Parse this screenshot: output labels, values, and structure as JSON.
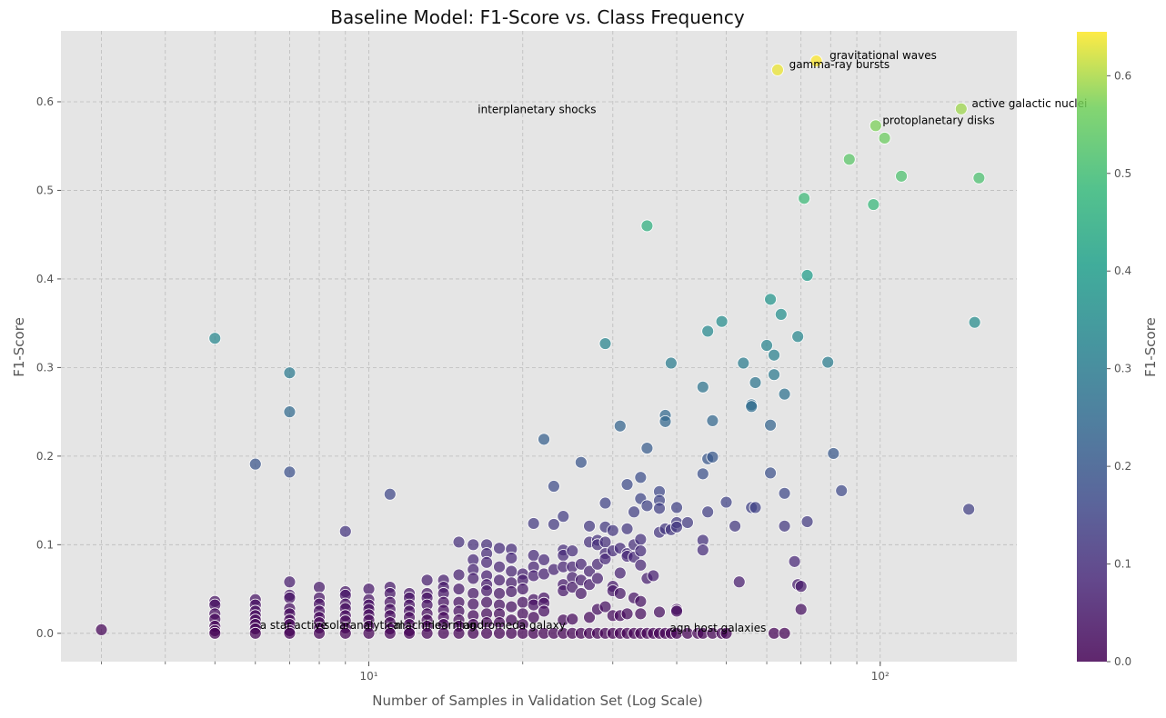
{
  "chart_data": {
    "type": "scatter",
    "title": "Baseline Model: F1-Score vs. Class Frequency",
    "xlabel": "Number of Samples in Validation Set (Log Scale)",
    "ylabel": "F1-Score",
    "xscale": "log",
    "xlim": [
      2.5,
      185
    ],
    "ylim": [
      -0.032,
      0.68
    ],
    "grid": true,
    "xticks": [
      {
        "value": 10,
        "label": "10¹"
      },
      {
        "value": 100,
        "label": "10²"
      }
    ],
    "yticks": [
      {
        "value": 0.0,
        "label": "0.0"
      },
      {
        "value": 0.1,
        "label": "0.1"
      },
      {
        "value": 0.2,
        "label": "0.2"
      },
      {
        "value": 0.3,
        "label": "0.3"
      },
      {
        "value": 0.4,
        "label": "0.4"
      },
      {
        "value": 0.5,
        "label": "0.5"
      },
      {
        "value": 0.6,
        "label": "0.6"
      }
    ],
    "colorbar": {
      "label": "F1-Score",
      "colormap": "viridis",
      "range": [
        0.0,
        0.645
      ],
      "ticks": [
        {
          "value": 0.0,
          "label": "0.0"
        },
        {
          "value": 0.1,
          "label": "0.1"
        },
        {
          "value": 0.2,
          "label": "0.2"
        },
        {
          "value": 0.3,
          "label": "0.3"
        },
        {
          "value": 0.4,
          "label": "0.4"
        },
        {
          "value": 0.5,
          "label": "0.5"
        },
        {
          "value": 0.6,
          "label": "0.6"
        }
      ]
    },
    "annotations": [
      {
        "text": "gravitational waves",
        "x": 78,
        "y": 0.646
      },
      {
        "text": "gamma-ray bursts",
        "x": 65,
        "y": 0.636
      },
      {
        "text": "active galactic nuclei",
        "x": 148,
        "y": 0.592
      },
      {
        "text": "protoplanetary disks",
        "x": 99,
        "y": 0.573
      },
      {
        "text": "interplanetary shocks",
        "x": 16,
        "y": 0.585
      },
      {
        "text": "a star",
        "x": 6,
        "y": 0.003
      },
      {
        "text": "active",
        "x": 7,
        "y": 0.003
      },
      {
        "text": "solar",
        "x": 8,
        "y": 0.003
      },
      {
        "text": "analytical",
        "x": 9,
        "y": 0.003
      },
      {
        "text": "machine",
        "x": 11,
        "y": 0.003
      },
      {
        "text": "learning",
        "x": 13,
        "y": 0.003
      },
      {
        "text": "andromeda galaxy",
        "x": 15,
        "y": 0.003
      },
      {
        "text": "agn host galaxies",
        "x": 38,
        "y": 0.0
      }
    ],
    "points": [
      {
        "x": 3,
        "y": 0.004
      },
      {
        "x": 5,
        "y": 0.333
      },
      {
        "x": 5,
        "y": 0.036
      },
      {
        "x": 5,
        "y": 0.032
      },
      {
        "x": 5,
        "y": 0.022
      },
      {
        "x": 5,
        "y": 0.016
      },
      {
        "x": 5,
        "y": 0.008
      },
      {
        "x": 5,
        "y": 0.003
      },
      {
        "x": 5,
        "y": 0.0
      },
      {
        "x": 6,
        "y": 0.191
      },
      {
        "x": 6,
        "y": 0.038
      },
      {
        "x": 6,
        "y": 0.032
      },
      {
        "x": 6,
        "y": 0.025
      },
      {
        "x": 6,
        "y": 0.02
      },
      {
        "x": 6,
        "y": 0.015
      },
      {
        "x": 6,
        "y": 0.01
      },
      {
        "x": 6,
        "y": 0.005
      },
      {
        "x": 6,
        "y": 0.0
      },
      {
        "x": 7,
        "y": 0.294
      },
      {
        "x": 7,
        "y": 0.25
      },
      {
        "x": 7,
        "y": 0.182
      },
      {
        "x": 7,
        "y": 0.058
      },
      {
        "x": 7,
        "y": 0.043
      },
      {
        "x": 7,
        "y": 0.04
      },
      {
        "x": 7,
        "y": 0.028
      },
      {
        "x": 7,
        "y": 0.022
      },
      {
        "x": 7,
        "y": 0.015
      },
      {
        "x": 7,
        "y": 0.01
      },
      {
        "x": 7,
        "y": 0.003
      },
      {
        "x": 7,
        "y": 0.0
      },
      {
        "x": 8,
        "y": 0.052
      },
      {
        "x": 8,
        "y": 0.04
      },
      {
        "x": 8,
        "y": 0.033
      },
      {
        "x": 8,
        "y": 0.025
      },
      {
        "x": 8,
        "y": 0.018
      },
      {
        "x": 8,
        "y": 0.012
      },
      {
        "x": 8,
        "y": 0.006
      },
      {
        "x": 8,
        "y": 0.0
      },
      {
        "x": 9,
        "y": 0.115
      },
      {
        "x": 9,
        "y": 0.047
      },
      {
        "x": 9,
        "y": 0.043
      },
      {
        "x": 9,
        "y": 0.033
      },
      {
        "x": 9,
        "y": 0.028
      },
      {
        "x": 9,
        "y": 0.02
      },
      {
        "x": 9,
        "y": 0.014
      },
      {
        "x": 9,
        "y": 0.006
      },
      {
        "x": 9,
        "y": 0.0
      },
      {
        "x": 10,
        "y": 0.05
      },
      {
        "x": 10,
        "y": 0.038
      },
      {
        "x": 10,
        "y": 0.032
      },
      {
        "x": 10,
        "y": 0.027
      },
      {
        "x": 10,
        "y": 0.021
      },
      {
        "x": 10,
        "y": 0.015
      },
      {
        "x": 10,
        "y": 0.008
      },
      {
        "x": 10,
        "y": 0.0
      },
      {
        "x": 11,
        "y": 0.157
      },
      {
        "x": 11,
        "y": 0.052
      },
      {
        "x": 11,
        "y": 0.045
      },
      {
        "x": 11,
        "y": 0.035
      },
      {
        "x": 11,
        "y": 0.027
      },
      {
        "x": 11,
        "y": 0.02
      },
      {
        "x": 11,
        "y": 0.012
      },
      {
        "x": 11,
        "y": 0.005
      },
      {
        "x": 11,
        "y": 0.0
      },
      {
        "x": 12,
        "y": 0.045
      },
      {
        "x": 12,
        "y": 0.04
      },
      {
        "x": 12,
        "y": 0.032
      },
      {
        "x": 12,
        "y": 0.025
      },
      {
        "x": 12,
        "y": 0.018
      },
      {
        "x": 12,
        "y": 0.01
      },
      {
        "x": 12,
        "y": 0.003
      },
      {
        "x": 12,
        "y": 0.0
      },
      {
        "x": 13,
        "y": 0.06
      },
      {
        "x": 13,
        "y": 0.045
      },
      {
        "x": 13,
        "y": 0.04
      },
      {
        "x": 13,
        "y": 0.032
      },
      {
        "x": 13,
        "y": 0.022
      },
      {
        "x": 13,
        "y": 0.015
      },
      {
        "x": 13,
        "y": 0.008
      },
      {
        "x": 13,
        "y": 0.0
      },
      {
        "x": 14,
        "y": 0.06
      },
      {
        "x": 14,
        "y": 0.052
      },
      {
        "x": 14,
        "y": 0.045
      },
      {
        "x": 14,
        "y": 0.035
      },
      {
        "x": 14,
        "y": 0.026
      },
      {
        "x": 14,
        "y": 0.018
      },
      {
        "x": 14,
        "y": 0.01
      },
      {
        "x": 14,
        "y": 0.0
      },
      {
        "x": 15,
        "y": 0.103
      },
      {
        "x": 15,
        "y": 0.066
      },
      {
        "x": 15,
        "y": 0.05
      },
      {
        "x": 15,
        "y": 0.035
      },
      {
        "x": 15,
        "y": 0.025
      },
      {
        "x": 15,
        "y": 0.015
      },
      {
        "x": 15,
        "y": 0.008
      },
      {
        "x": 15,
        "y": 0.0
      },
      {
        "x": 16,
        "y": 0.1
      },
      {
        "x": 16,
        "y": 0.083
      },
      {
        "x": 16,
        "y": 0.072
      },
      {
        "x": 16,
        "y": 0.062
      },
      {
        "x": 16,
        "y": 0.045
      },
      {
        "x": 16,
        "y": 0.033
      },
      {
        "x": 16,
        "y": 0.02
      },
      {
        "x": 16,
        "y": 0.01
      },
      {
        "x": 16,
        "y": 0.0
      },
      {
        "x": 17,
        "y": 0.1
      },
      {
        "x": 17,
        "y": 0.09
      },
      {
        "x": 17,
        "y": 0.08
      },
      {
        "x": 17,
        "y": 0.065
      },
      {
        "x": 17,
        "y": 0.055
      },
      {
        "x": 17,
        "y": 0.048
      },
      {
        "x": 17,
        "y": 0.035
      },
      {
        "x": 17,
        "y": 0.022
      },
      {
        "x": 17,
        "y": 0.012
      },
      {
        "x": 17,
        "y": 0.0
      },
      {
        "x": 18,
        "y": 0.096
      },
      {
        "x": 18,
        "y": 0.075
      },
      {
        "x": 18,
        "y": 0.06
      },
      {
        "x": 18,
        "y": 0.045
      },
      {
        "x": 18,
        "y": 0.032
      },
      {
        "x": 18,
        "y": 0.022
      },
      {
        "x": 18,
        "y": 0.012
      },
      {
        "x": 18,
        "y": 0.0
      },
      {
        "x": 19,
        "y": 0.095
      },
      {
        "x": 19,
        "y": 0.085
      },
      {
        "x": 19,
        "y": 0.07
      },
      {
        "x": 19,
        "y": 0.057
      },
      {
        "x": 19,
        "y": 0.047
      },
      {
        "x": 19,
        "y": 0.03
      },
      {
        "x": 19,
        "y": 0.015
      },
      {
        "x": 19,
        "y": 0.0
      },
      {
        "x": 20,
        "y": 0.067
      },
      {
        "x": 20,
        "y": 0.06
      },
      {
        "x": 20,
        "y": 0.05
      },
      {
        "x": 20,
        "y": 0.035
      },
      {
        "x": 20,
        "y": 0.022
      },
      {
        "x": 20,
        "y": 0.01
      },
      {
        "x": 20,
        "y": 0.0
      },
      {
        "x": 21,
        "y": 0.124
      },
      {
        "x": 21,
        "y": 0.088
      },
      {
        "x": 21,
        "y": 0.075
      },
      {
        "x": 21,
        "y": 0.065
      },
      {
        "x": 21,
        "y": 0.038
      },
      {
        "x": 21,
        "y": 0.032
      },
      {
        "x": 21,
        "y": 0.018
      },
      {
        "x": 21,
        "y": 0.0
      },
      {
        "x": 22,
        "y": 0.219
      },
      {
        "x": 22,
        "y": 0.083
      },
      {
        "x": 22,
        "y": 0.067
      },
      {
        "x": 22,
        "y": 0.04
      },
      {
        "x": 22,
        "y": 0.034
      },
      {
        "x": 22,
        "y": 0.025
      },
      {
        "x": 22,
        "y": 0.0
      },
      {
        "x": 23,
        "y": 0.166
      },
      {
        "x": 23,
        "y": 0.123
      },
      {
        "x": 23,
        "y": 0.072
      },
      {
        "x": 23,
        "y": 0.0
      },
      {
        "x": 24,
        "y": 0.132
      },
      {
        "x": 24,
        "y": 0.094
      },
      {
        "x": 24,
        "y": 0.088
      },
      {
        "x": 24,
        "y": 0.075
      },
      {
        "x": 24,
        "y": 0.055
      },
      {
        "x": 24,
        "y": 0.048
      },
      {
        "x": 24,
        "y": 0.015
      },
      {
        "x": 24,
        "y": 0.0
      },
      {
        "x": 25,
        "y": 0.093
      },
      {
        "x": 25,
        "y": 0.075
      },
      {
        "x": 25,
        "y": 0.063
      },
      {
        "x": 25,
        "y": 0.052
      },
      {
        "x": 25,
        "y": 0.016
      },
      {
        "x": 25,
        "y": 0.0
      },
      {
        "x": 26,
        "y": 0.193
      },
      {
        "x": 26,
        "y": 0.078
      },
      {
        "x": 26,
        "y": 0.06
      },
      {
        "x": 26,
        "y": 0.045
      },
      {
        "x": 26,
        "y": 0.0
      },
      {
        "x": 27,
        "y": 0.121
      },
      {
        "x": 27,
        "y": 0.103
      },
      {
        "x": 27,
        "y": 0.07
      },
      {
        "x": 27,
        "y": 0.055
      },
      {
        "x": 27,
        "y": 0.018
      },
      {
        "x": 27,
        "y": 0.0
      },
      {
        "x": 28,
        "y": 0.105
      },
      {
        "x": 28,
        "y": 0.1
      },
      {
        "x": 28,
        "y": 0.078
      },
      {
        "x": 28,
        "y": 0.062
      },
      {
        "x": 28,
        "y": 0.027
      },
      {
        "x": 28,
        "y": 0.0
      },
      {
        "x": 29,
        "y": 0.327
      },
      {
        "x": 29,
        "y": 0.147
      },
      {
        "x": 29,
        "y": 0.12
      },
      {
        "x": 29,
        "y": 0.103
      },
      {
        "x": 29,
        "y": 0.09
      },
      {
        "x": 29,
        "y": 0.084
      },
      {
        "x": 29,
        "y": 0.03
      },
      {
        "x": 29,
        "y": 0.0
      },
      {
        "x": 30,
        "y": 0.116
      },
      {
        "x": 30,
        "y": 0.093
      },
      {
        "x": 30,
        "y": 0.053
      },
      {
        "x": 30,
        "y": 0.048
      },
      {
        "x": 30,
        "y": 0.02
      },
      {
        "x": 30,
        "y": 0.0
      },
      {
        "x": 31,
        "y": 0.234
      },
      {
        "x": 31,
        "y": 0.096
      },
      {
        "x": 31,
        "y": 0.068
      },
      {
        "x": 31,
        "y": 0.045
      },
      {
        "x": 31,
        "y": 0.02
      },
      {
        "x": 31,
        "y": 0.0
      },
      {
        "x": 32,
        "y": 0.168
      },
      {
        "x": 32,
        "y": 0.118
      },
      {
        "x": 32,
        "y": 0.09
      },
      {
        "x": 32,
        "y": 0.087
      },
      {
        "x": 32,
        "y": 0.022
      },
      {
        "x": 32,
        "y": 0.0
      },
      {
        "x": 33,
        "y": 0.137
      },
      {
        "x": 33,
        "y": 0.1
      },
      {
        "x": 33,
        "y": 0.086
      },
      {
        "x": 33,
        "y": 0.04
      },
      {
        "x": 33,
        "y": 0.0
      },
      {
        "x": 34,
        "y": 0.176
      },
      {
        "x": 34,
        "y": 0.152
      },
      {
        "x": 34,
        "y": 0.106
      },
      {
        "x": 34,
        "y": 0.093
      },
      {
        "x": 34,
        "y": 0.077
      },
      {
        "x": 34,
        "y": 0.036
      },
      {
        "x": 34,
        "y": 0.022
      },
      {
        "x": 34,
        "y": 0.0
      },
      {
        "x": 35,
        "y": 0.46
      },
      {
        "x": 35,
        "y": 0.209
      },
      {
        "x": 35,
        "y": 0.144
      },
      {
        "x": 35,
        "y": 0.062
      },
      {
        "x": 35,
        "y": 0.0
      },
      {
        "x": 36,
        "y": 0.065
      },
      {
        "x": 36,
        "y": 0.0
      },
      {
        "x": 37,
        "y": 0.16
      },
      {
        "x": 37,
        "y": 0.15
      },
      {
        "x": 37,
        "y": 0.141
      },
      {
        "x": 37,
        "y": 0.114
      },
      {
        "x": 37,
        "y": 0.024
      },
      {
        "x": 37,
        "y": 0.0
      },
      {
        "x": 38,
        "y": 0.246
      },
      {
        "x": 38,
        "y": 0.239
      },
      {
        "x": 38,
        "y": 0.118
      },
      {
        "x": 38,
        "y": 0.0
      },
      {
        "x": 39,
        "y": 0.305
      },
      {
        "x": 39,
        "y": 0.117
      },
      {
        "x": 39,
        "y": 0.0
      },
      {
        "x": 40,
        "y": 0.142
      },
      {
        "x": 40,
        "y": 0.125
      },
      {
        "x": 40,
        "y": 0.12
      },
      {
        "x": 40,
        "y": 0.027
      },
      {
        "x": 40,
        "y": 0.025
      },
      {
        "x": 40,
        "y": 0.0
      },
      {
        "x": 42,
        "y": 0.125
      },
      {
        "x": 42,
        "y": 0.0
      },
      {
        "x": 44,
        "y": 0.0
      },
      {
        "x": 45,
        "y": 0.278
      },
      {
        "x": 45,
        "y": 0.18
      },
      {
        "x": 45,
        "y": 0.105
      },
      {
        "x": 45,
        "y": 0.094
      },
      {
        "x": 45,
        "y": 0.0
      },
      {
        "x": 46,
        "y": 0.341
      },
      {
        "x": 46,
        "y": 0.197
      },
      {
        "x": 46,
        "y": 0.137
      },
      {
        "x": 47,
        "y": 0.24
      },
      {
        "x": 47,
        "y": 0.199
      },
      {
        "x": 47,
        "y": 0.0
      },
      {
        "x": 49,
        "y": 0.352
      },
      {
        "x": 49,
        "y": 0.0
      },
      {
        "x": 50,
        "y": 0.148
      },
      {
        "x": 50,
        "y": 0.0
      },
      {
        "x": 52,
        "y": 0.121
      },
      {
        "x": 53,
        "y": 0.058
      },
      {
        "x": 54,
        "y": 0.305
      },
      {
        "x": 56,
        "y": 0.258
      },
      {
        "x": 56,
        "y": 0.256
      },
      {
        "x": 56,
        "y": 0.142
      },
      {
        "x": 57,
        "y": 0.283
      },
      {
        "x": 57,
        "y": 0.142
      },
      {
        "x": 60,
        "y": 0.325
      },
      {
        "x": 61,
        "y": 0.377
      },
      {
        "x": 61,
        "y": 0.235
      },
      {
        "x": 61,
        "y": 0.181
      },
      {
        "x": 62,
        "y": 0.314
      },
      {
        "x": 62,
        "y": 0.292
      },
      {
        "x": 62,
        "y": 0.0
      },
      {
        "x": 63,
        "y": 0.636
      },
      {
        "x": 64,
        "y": 0.36
      },
      {
        "x": 65,
        "y": 0.27
      },
      {
        "x": 65,
        "y": 0.158
      },
      {
        "x": 65,
        "y": 0.121
      },
      {
        "x": 65,
        "y": 0.0
      },
      {
        "x": 68,
        "y": 0.081
      },
      {
        "x": 69,
        "y": 0.335
      },
      {
        "x": 69,
        "y": 0.055
      },
      {
        "x": 70,
        "y": 0.053
      },
      {
        "x": 70,
        "y": 0.027
      },
      {
        "x": 71,
        "y": 0.491
      },
      {
        "x": 72,
        "y": 0.404
      },
      {
        "x": 72,
        "y": 0.126
      },
      {
        "x": 75,
        "y": 0.646
      },
      {
        "x": 79,
        "y": 0.306
      },
      {
        "x": 81,
        "y": 0.203
      },
      {
        "x": 84,
        "y": 0.161
      },
      {
        "x": 87,
        "y": 0.535
      },
      {
        "x": 97,
        "y": 0.484
      },
      {
        "x": 98,
        "y": 0.573
      },
      {
        "x": 102,
        "y": 0.559
      },
      {
        "x": 110,
        "y": 0.516
      },
      {
        "x": 144,
        "y": 0.592
      },
      {
        "x": 149,
        "y": 0.14
      },
      {
        "x": 153,
        "y": 0.351
      },
      {
        "x": 156,
        "y": 0.514
      }
    ]
  }
}
